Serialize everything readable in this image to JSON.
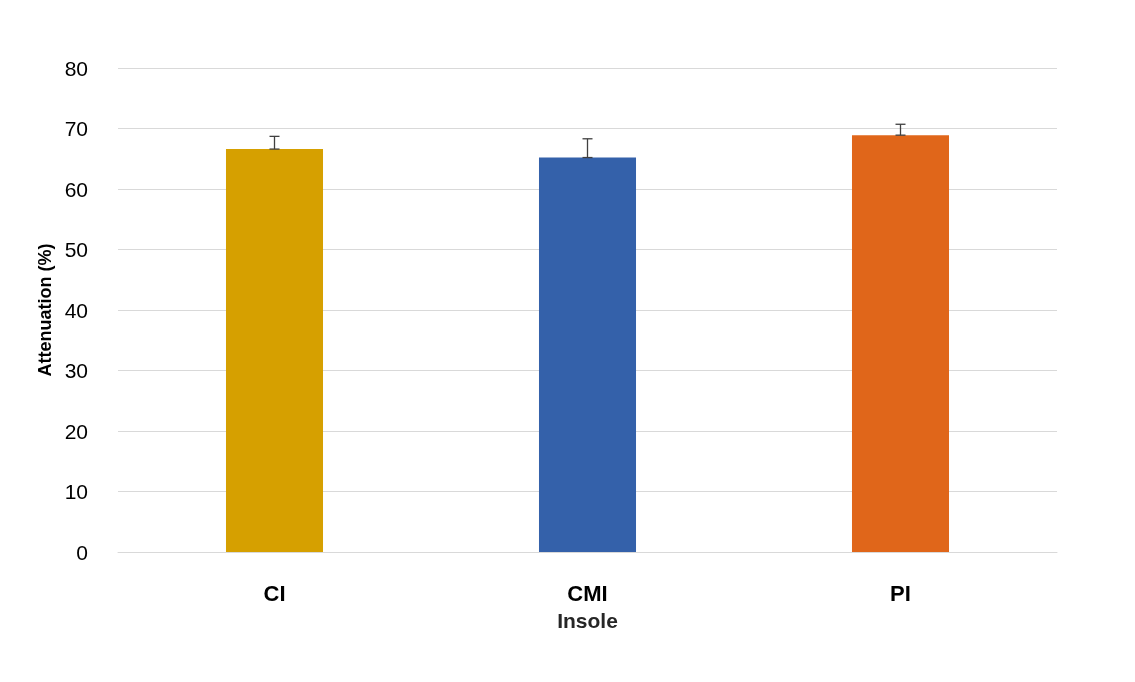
{
  "chart_data": {
    "type": "bar",
    "xlabel": "Insole",
    "ylabel": "Attenuation (%)",
    "categories": [
      "CI",
      "CMI",
      "PI"
    ],
    "values": [
      66.6,
      65.2,
      68.9
    ],
    "errors": [
      [
        66.6,
        68.7
      ],
      [
        65.2,
        68.3
      ],
      [
        68.9,
        70.7
      ]
    ],
    "colors": [
      "#d6a000",
      "#3461aa",
      "#e0661a"
    ],
    "ylim": [
      0,
      80
    ],
    "yticks": [
      0,
      10,
      20,
      30,
      40,
      50,
      60,
      70,
      80
    ],
    "grid": "y"
  }
}
